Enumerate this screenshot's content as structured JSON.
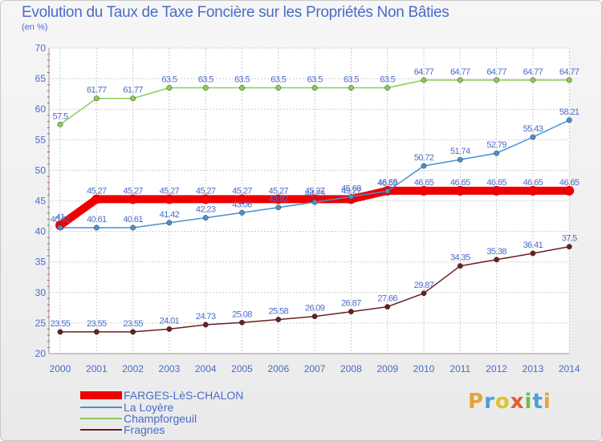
{
  "header": {
    "title": "Evolution du Taux de Taxe Foncière sur les Propriétés Non Bâties",
    "unit": "(en %)"
  },
  "logo": {
    "text": "Proxiti"
  },
  "colors": {
    "background": "#ffffff",
    "grid": "#cccccc",
    "text": "#4a6cc8",
    "farges": "#ee0000",
    "loyere": "#4a90d0",
    "champforgeuil": "#88cc55",
    "fragnes": "#6b1f1f"
  },
  "chart_data": {
    "type": "line",
    "title": "Evolution du Taux de Taxe Foncière sur les Propriétés Non Bâties",
    "ylabel": "(en %)",
    "xlabel": "",
    "ylim": [
      20,
      70
    ],
    "yticks": [
      20,
      25,
      30,
      35,
      40,
      45,
      50,
      55,
      60,
      65,
      70
    ],
    "grid": true,
    "legend": "bottom-left",
    "x": [
      "2000",
      "2001",
      "2002",
      "2003",
      "2004",
      "2005",
      "2006",
      "2007",
      "2008",
      "2009",
      "2010",
      "2011",
      "2012",
      "2013",
      "2014"
    ],
    "series": [
      {
        "name": "FARGES-LèS-CHALON",
        "color": "#ee0000",
        "values": [
          41,
          45.27,
          45.27,
          45.27,
          45.27,
          45.27,
          45.27,
          45.27,
          45.27,
          46.65,
          46.65,
          46.65,
          46.65,
          46.65,
          46.65
        ],
        "labels": [
          "41",
          "45.27",
          "45.27",
          "45.27",
          "45.27",
          "45.27",
          "45.27",
          "45.27",
          "45.27",
          "46.65",
          "46.65",
          "46.65",
          "46.65",
          "46.65",
          "46.65"
        ]
      },
      {
        "name": "La Loyère",
        "color": "#4a90d0",
        "values": [
          40.61,
          40.61,
          40.61,
          41.42,
          42.23,
          43.06,
          43.92,
          44.79,
          45.68,
          46.59,
          50.72,
          51.74,
          52.79,
          55.43,
          58.21
        ],
        "labels": [
          "40.61",
          "40.61",
          "40.61",
          "41.42",
          "42.23",
          "43.06",
          "43.92",
          "44.79",
          "45.68",
          "46.59",
          "50.72",
          "51.74",
          "52.79",
          "55.43",
          "58.21"
        ]
      },
      {
        "name": "Champforgeuil",
        "color": "#88cc55",
        "values": [
          57.5,
          61.77,
          61.77,
          63.5,
          63.5,
          63.5,
          63.5,
          63.5,
          63.5,
          63.5,
          64.77,
          64.77,
          64.77,
          64.77,
          64.77
        ],
        "labels": [
          "57.5",
          "61.77",
          "61.77",
          "63.5",
          "63.5",
          "63.5",
          "63.5",
          "63.5",
          "63.5",
          "63.5",
          "64.77",
          "64.77",
          "64.77",
          "64.77",
          "64.77"
        ]
      },
      {
        "name": "Fragnes",
        "color": "#6b1f1f",
        "values": [
          23.55,
          23.55,
          23.55,
          24.01,
          24.73,
          25.08,
          25.58,
          26.09,
          26.87,
          27.66,
          29.87,
          34.35,
          35.38,
          36.41,
          37.5
        ],
        "labels": [
          "23.55",
          "23.55",
          "23.55",
          "24.01",
          "24.73",
          "25.08",
          "25.58",
          "26.09",
          "26.87",
          "27.66",
          "29.87",
          "34.35",
          "35.38",
          "36.41",
          "37.5"
        ]
      }
    ]
  }
}
